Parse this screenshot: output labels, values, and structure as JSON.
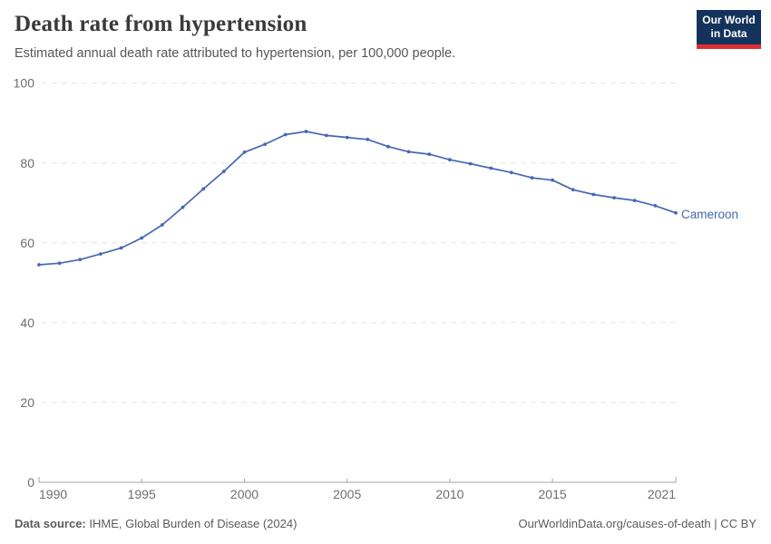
{
  "header": {
    "title": "Death rate from hypertension",
    "subtitle": "Estimated annual death rate attributed to hypertension, per 100,000 people.",
    "logo": {
      "line1": "Our World",
      "line2": "in Data"
    }
  },
  "chart_data": {
    "type": "line",
    "title": "Death rate from hypertension",
    "subtitle": "Estimated annual death rate attributed to hypertension, per 100,000 people.",
    "xlabel": "",
    "ylabel": "",
    "x": [
      1990,
      1991,
      1992,
      1993,
      1994,
      1995,
      1996,
      1997,
      1998,
      1999,
      2000,
      2001,
      2002,
      2003,
      2004,
      2005,
      2006,
      2007,
      2008,
      2009,
      2010,
      2011,
      2012,
      2013,
      2014,
      2015,
      2016,
      2017,
      2018,
      2019,
      2020,
      2021
    ],
    "series": [
      {
        "name": "Cameroon",
        "color": "#4668b2",
        "values": [
          54.5,
          54.9,
          55.8,
          57.2,
          58.7,
          61.2,
          64.5,
          68.9,
          73.5,
          77.9,
          82.7,
          84.7,
          87.1,
          87.9,
          86.9,
          86.4,
          85.9,
          84.1,
          82.8,
          82.2,
          80.8,
          79.8,
          78.7,
          77.6,
          76.3,
          75.7,
          73.3,
          72.1,
          71.3,
          70.6,
          69.3,
          67.5
        ]
      }
    ],
    "ylim": [
      0,
      100
    ],
    "y_ticks": [
      0,
      20,
      40,
      60,
      80,
      100
    ],
    "x_ticks": [
      1990,
      1995,
      2000,
      2005,
      2010,
      2015,
      2021
    ],
    "grid": "horizontal-dashed",
    "legend_position": "end-of-line-label"
  },
  "footer": {
    "source_label": "Data source:",
    "source_text": "IHME, Global Burden of Disease (2024)",
    "link_text": "OurWorldinData.org/causes-of-death",
    "license_text": "| CC BY"
  },
  "colors": {
    "line": "#4668b2",
    "logo_background": "#14335c",
    "logo_stripe": "#dc2e32",
    "grid": "#e4e4e4",
    "axis": "#a5a5a5",
    "tick_text": "#6e6e6e"
  }
}
